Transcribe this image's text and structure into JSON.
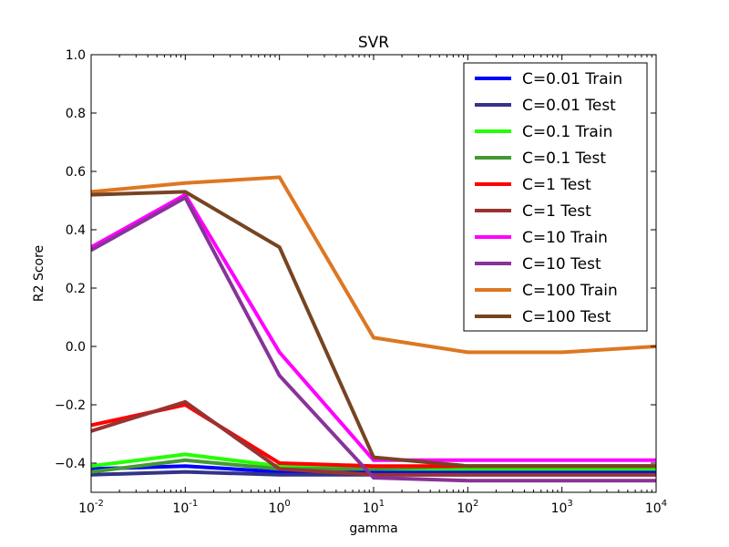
{
  "chart_data": {
    "type": "line",
    "title": "SVR",
    "xlabel": "gamma",
    "ylabel": "R2 Score",
    "xscale": "log",
    "x": [
      0.01,
      0.1,
      1,
      10,
      100,
      1000,
      10000
    ],
    "x_tick_labels": [
      {
        "base": "10",
        "exp": "-2"
      },
      {
        "base": "10",
        "exp": "-1"
      },
      {
        "base": "10",
        "exp": "0"
      },
      {
        "base": "10",
        "exp": "1"
      },
      {
        "base": "10",
        "exp": "2"
      },
      {
        "base": "10",
        "exp": "3"
      },
      {
        "base": "10",
        "exp": "4"
      }
    ],
    "ylim": [
      -0.5,
      1.0
    ],
    "y_ticks": [
      -0.4,
      -0.2,
      0.0,
      0.2,
      0.4,
      0.6,
      0.8,
      1.0
    ],
    "y_tick_labels": [
      "−0.4",
      "−0.2",
      "0.0",
      "0.2",
      "0.4",
      "0.6",
      "0.8",
      "1.0"
    ],
    "grid": false,
    "legend_position": "top-right",
    "series": [
      {
        "name": "C=0.01 Train",
        "color": "#0000ff",
        "values": [
          -0.42,
          -0.41,
          -0.43,
          -0.43,
          -0.43,
          -0.43,
          -0.43
        ]
      },
      {
        "name": "C=0.01 Test",
        "color": "#333388",
        "values": [
          -0.44,
          -0.43,
          -0.44,
          -0.44,
          -0.44,
          -0.44,
          -0.44
        ]
      },
      {
        "name": "C=0.1 Train",
        "color": "#22ff00",
        "values": [
          -0.41,
          -0.37,
          -0.41,
          -0.42,
          -0.42,
          -0.42,
          -0.42
        ]
      },
      {
        "name": "C=0.1 Test",
        "color": "#449933",
        "values": [
          -0.43,
          -0.39,
          -0.42,
          -0.42,
          -0.41,
          -0.41,
          -0.41
        ]
      },
      {
        "name": "C=1 Test",
        "color": "#ff0000",
        "values": [
          -0.27,
          -0.2,
          -0.4,
          -0.41,
          -0.41,
          -0.41,
          -0.41
        ]
      },
      {
        "name": "C=1 Test",
        "color": "#993333",
        "values": [
          -0.29,
          -0.19,
          -0.42,
          -0.44,
          -0.44,
          -0.44,
          -0.44
        ]
      },
      {
        "name": "C=10 Train",
        "color": "#ff00ff",
        "values": [
          0.34,
          0.52,
          -0.02,
          -0.39,
          -0.39,
          -0.39,
          -0.39
        ]
      },
      {
        "name": "C=10 Test",
        "color": "#883399",
        "values": [
          0.33,
          0.51,
          -0.1,
          -0.45,
          -0.46,
          -0.46,
          -0.46
        ]
      },
      {
        "name": "C=100 Train",
        "color": "#dd7722",
        "values": [
          0.53,
          0.56,
          0.58,
          0.03,
          -0.02,
          -0.02,
          0.0
        ]
      },
      {
        "name": "C=100 Test",
        "color": "#774422",
        "values": [
          0.52,
          0.53,
          0.34,
          -0.38,
          -0.41,
          -0.41,
          -0.41
        ]
      }
    ]
  }
}
